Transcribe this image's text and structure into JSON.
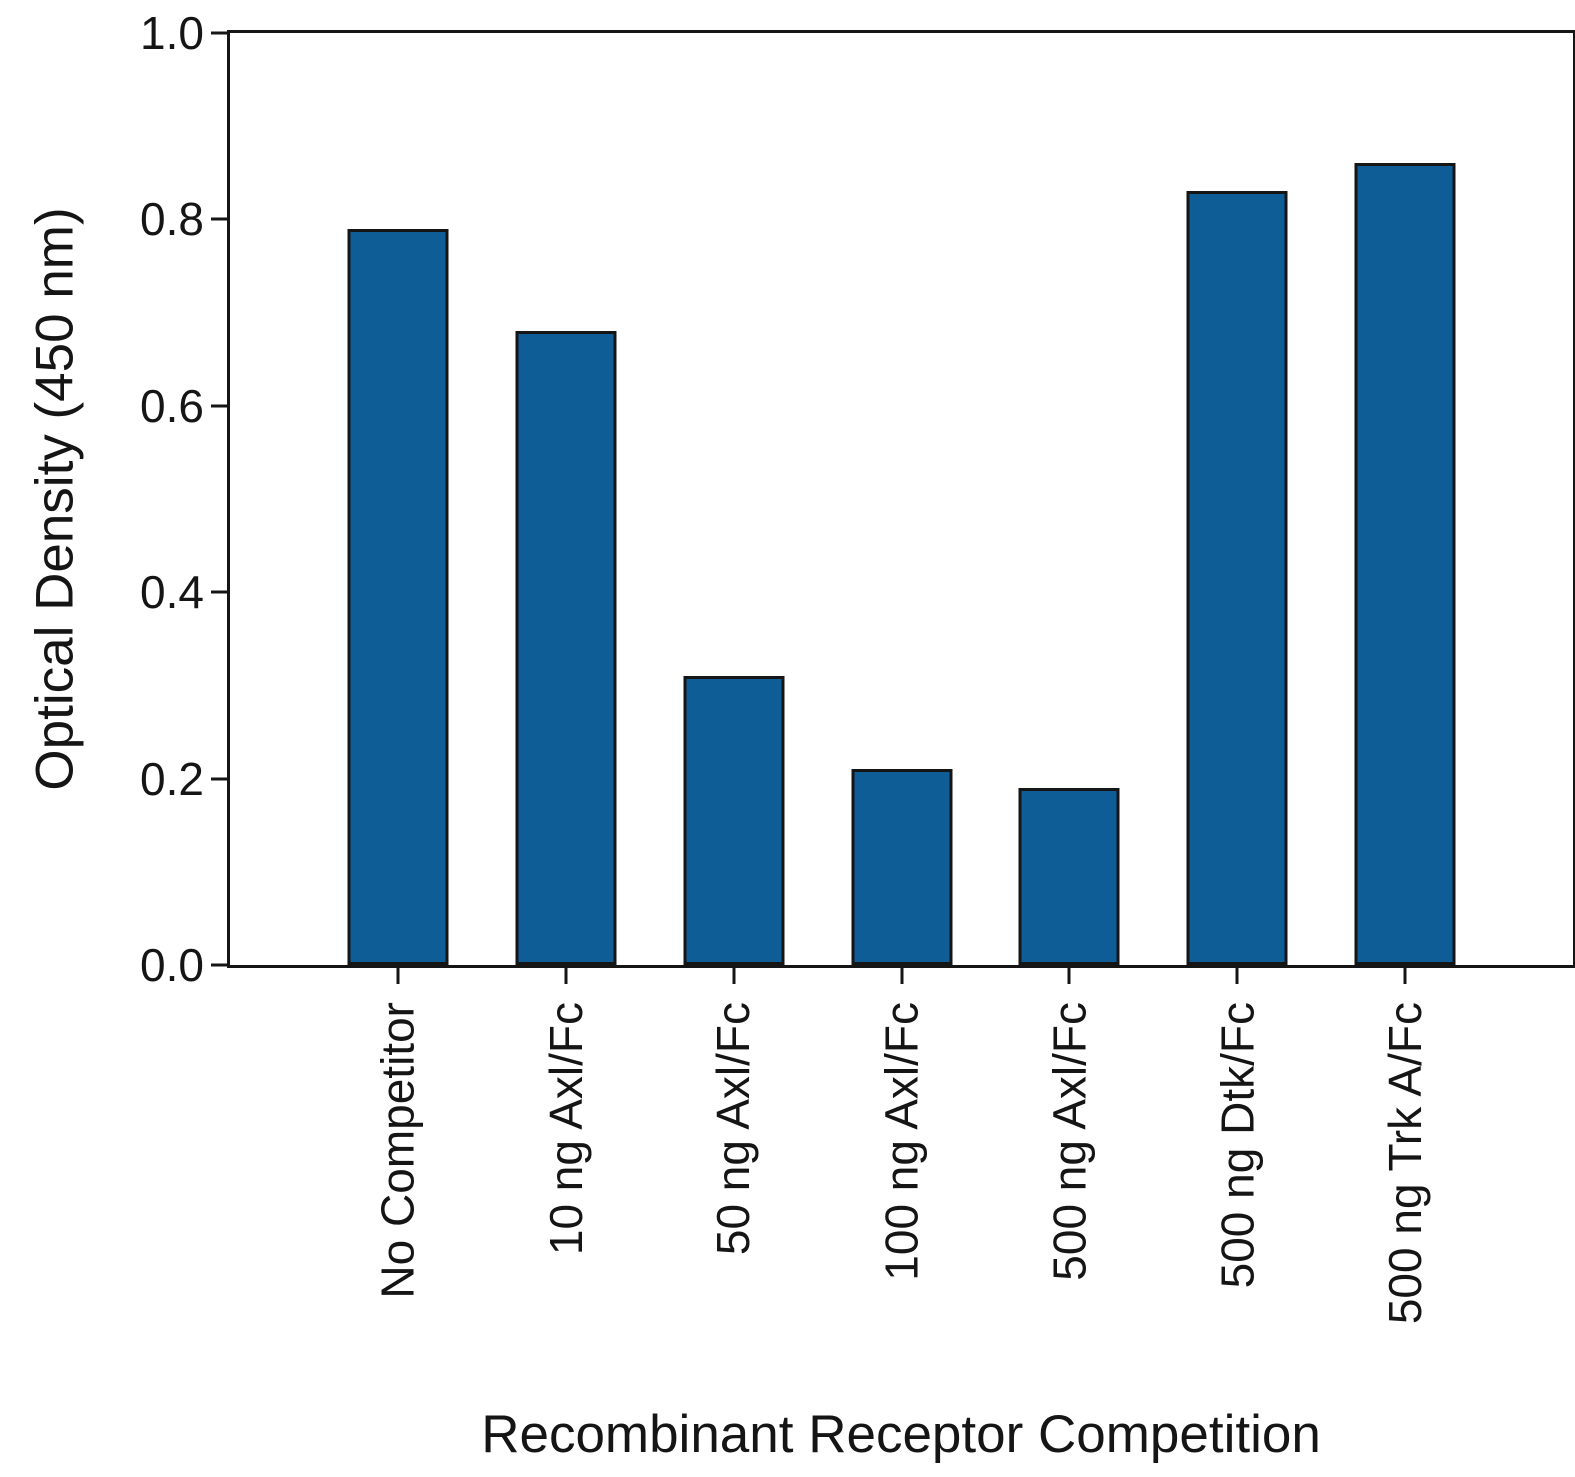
{
  "chart_data": {
    "type": "bar",
    "title": "",
    "xlabel": "Recombinant Receptor Competition",
    "ylabel": "Optical Density (450 nm)",
    "categories": [
      "No Competitor",
      "10 ng Axl/Fc",
      "50 ng Axl/Fc",
      "100 ng Axl/Fc",
      "500 ng Axl/Fc",
      "500 ng Dtk/Fc",
      "500 ng Trk A/Fc"
    ],
    "values": [
      0.79,
      0.68,
      0.31,
      0.21,
      0.19,
      0.83,
      0.86
    ],
    "ylim": [
      0.0,
      1.0
    ],
    "yticks": [
      0.0,
      0.2,
      0.4,
      0.6,
      0.8,
      1.0
    ],
    "ytick_labels": [
      "0.0",
      "0.2",
      "0.4",
      "0.6",
      "0.8",
      "1.0"
    ],
    "grid": false,
    "legend_position": "none",
    "bar_color": "#0e5d96",
    "edge_color": "#151515",
    "background_color": "#ffffff"
  }
}
